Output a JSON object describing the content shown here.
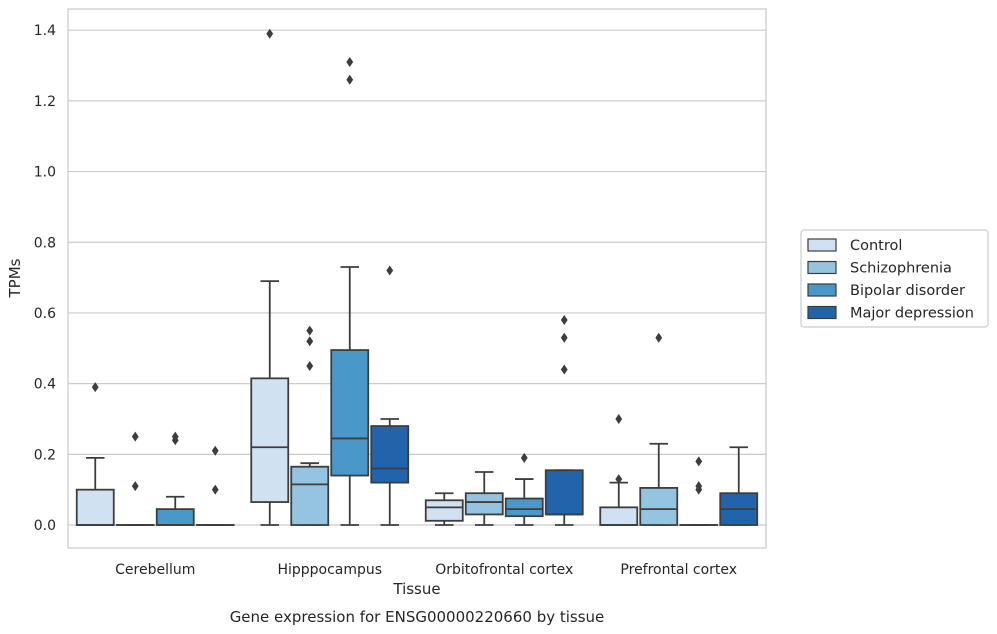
{
  "chart_data": {
    "type": "box",
    "xlabel": "Tissue",
    "ylabel": "TPMs",
    "caption": "Gene expression for ENSG00000220660 by tissue",
    "ylim": [
      -0.065,
      1.46
    ],
    "yticks": [
      0.0,
      0.2,
      0.4,
      0.6,
      0.8,
      1.0,
      1.2,
      1.4
    ],
    "ytick_labels": [
      "0.0",
      "0.2",
      "0.4",
      "0.6",
      "0.8",
      "1.0",
      "1.2",
      "1.4"
    ],
    "grid": "horizontal",
    "legend_position": "right",
    "categories": [
      "Cerebellum",
      "Hipppocampus",
      "Orbitofrontal cortex",
      "Prefrontal cortex"
    ],
    "series": [
      {
        "name": "Control",
        "color": "#d0e1f2",
        "boxes": [
          {
            "min": 0.0,
            "q1": 0.0,
            "median": 0.0,
            "q3": 0.1,
            "max": 0.19,
            "outliers": [
              0.39
            ]
          },
          {
            "min": 0.0,
            "q1": 0.065,
            "median": 0.22,
            "q3": 0.415,
            "max": 0.69,
            "outliers": [
              1.39
            ]
          },
          {
            "min": 0.0,
            "q1": 0.012,
            "median": 0.05,
            "q3": 0.07,
            "max": 0.09,
            "outliers": []
          },
          {
            "min": 0.0,
            "q1": 0.0,
            "median": 0.0,
            "q3": 0.05,
            "max": 0.12,
            "outliers": [
              0.13,
              0.3
            ]
          }
        ]
      },
      {
        "name": "Schizophrenia",
        "color": "#94c4df",
        "boxes": [
          {
            "min": 0.0,
            "q1": 0.0,
            "median": 0.0,
            "q3": 0.0,
            "max": 0.0,
            "outliers": [
              0.11,
              0.25
            ]
          },
          {
            "min": 0.0,
            "q1": 0.0,
            "median": 0.115,
            "q3": 0.165,
            "max": 0.175,
            "outliers": [
              0.45,
              0.52,
              0.55
            ]
          },
          {
            "min": 0.0,
            "q1": 0.03,
            "median": 0.065,
            "q3": 0.09,
            "max": 0.15,
            "outliers": []
          },
          {
            "min": 0.0,
            "q1": 0.0,
            "median": 0.045,
            "q3": 0.105,
            "max": 0.23,
            "outliers": [
              0.53
            ]
          }
        ]
      },
      {
        "name": "Bipolar disorder",
        "color": "#4a98c9",
        "boxes": [
          {
            "min": 0.0,
            "q1": 0.0,
            "median": 0.0,
            "q3": 0.045,
            "max": 0.08,
            "outliers": [
              0.24,
              0.25
            ]
          },
          {
            "min": 0.0,
            "q1": 0.14,
            "median": 0.245,
            "q3": 0.495,
            "max": 0.73,
            "outliers": [
              1.26,
              1.31
            ]
          },
          {
            "min": 0.0,
            "q1": 0.025,
            "median": 0.045,
            "q3": 0.075,
            "max": 0.13,
            "outliers": [
              0.19
            ]
          },
          {
            "min": 0.0,
            "q1": 0.0,
            "median": 0.0,
            "q3": 0.0,
            "max": 0.0,
            "outliers": [
              0.1,
              0.11,
              0.18
            ]
          }
        ]
      },
      {
        "name": "Major depression",
        "color": "#2164ab",
        "boxes": [
          {
            "min": 0.0,
            "q1": 0.0,
            "median": 0.0,
            "q3": 0.0,
            "max": 0.0,
            "outliers": [
              0.1,
              0.21
            ]
          },
          {
            "min": 0.0,
            "q1": 0.12,
            "median": 0.16,
            "q3": 0.28,
            "max": 0.3,
            "outliers": [
              0.72
            ]
          },
          {
            "min": 0.0,
            "q1": 0.03,
            "median": 0.03,
            "q3": 0.155,
            "max": 0.155,
            "outliers": [
              0.44,
              0.53,
              0.58
            ]
          },
          {
            "min": 0.0,
            "q1": 0.0,
            "median": 0.045,
            "q3": 0.09,
            "max": 0.22,
            "outliers": []
          }
        ]
      }
    ]
  }
}
